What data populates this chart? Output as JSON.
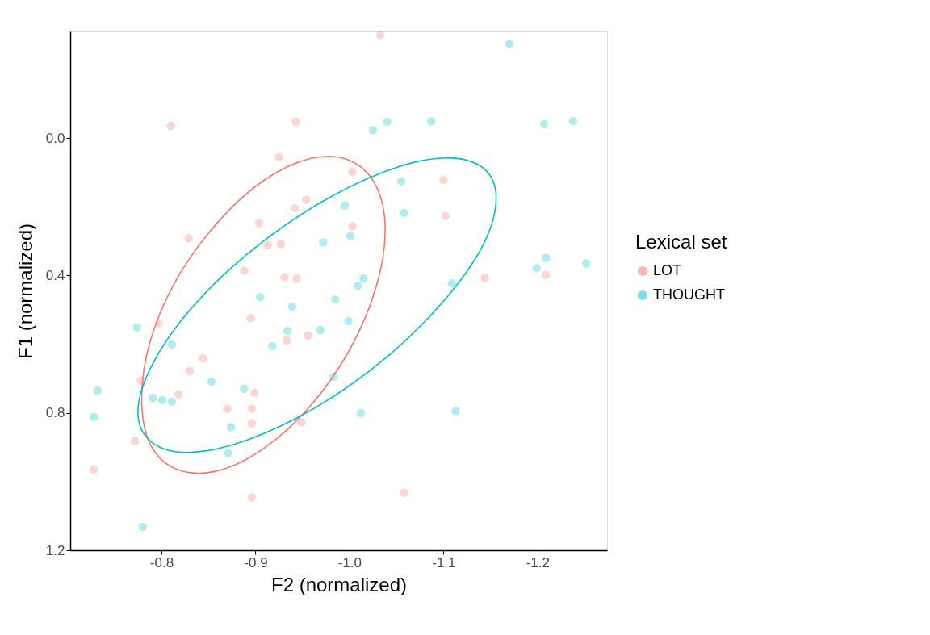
{
  "chart_data": {
    "type": "scatter",
    "xlabel": "F2 (normalized)",
    "ylabel": "F1 (normalized)",
    "legend_title": "Lexical set",
    "xlim": [
      -0.703,
      -1.274
    ],
    "ylim": [
      1.2,
      -0.31
    ],
    "xticks": [
      -0.8,
      -0.9,
      {
        "value": -1.0,
        "label": "-1.0"
      },
      -1.1,
      -1.2
    ],
    "yticks": [
      {
        "value": 0,
        "label": "0.0"
      },
      0.4,
      0.8,
      1.2
    ],
    "grid": false,
    "legend": "right",
    "marker": "circle",
    "series": [
      {
        "name": "LOT",
        "color": "#f8766d",
        "x": [
          -1.033,
          -0.81,
          -0.943,
          -0.925,
          -1.003,
          -1.1,
          -1.102,
          -0.954,
          -0.942,
          -0.904,
          -1.003,
          -0.829,
          -0.913,
          -0.927,
          -0.888,
          -0.931,
          -0.944,
          -1.144,
          -1.209,
          -0.895,
          -0.797,
          -0.933,
          -0.956,
          -0.844,
          -0.83,
          -0.778,
          -0.818,
          -0.899,
          -0.87,
          -0.896,
          -0.896,
          -0.949,
          -0.772,
          -0.728,
          -0.896,
          -1.058
        ],
        "values": [
          -0.3,
          -0.035,
          -0.047,
          0.056,
          0.098,
          0.122,
          0.227,
          0.18,
          0.204,
          0.248,
          0.257,
          0.292,
          0.311,
          0.309,
          0.386,
          0.405,
          0.409,
          0.407,
          0.398,
          0.524,
          0.54,
          0.589,
          0.575,
          0.641,
          0.678,
          0.706,
          0.746,
          0.742,
          0.788,
          0.788,
          0.83,
          0.828,
          0.882,
          0.964,
          1.046,
          1.032
        ]
      },
      {
        "name": "THOUGHT",
        "color": "#00bfc4",
        "x": [
          -1.17,
          -1.025,
          -1.04,
          -1.087,
          -1.207,
          -1.238,
          -1.055,
          -0.995,
          -1.058,
          -1.001,
          -0.972,
          -1.209,
          -1.199,
          -1.252,
          -1.009,
          -1.015,
          -1.109,
          -0.905,
          -0.939,
          -0.985,
          -0.999,
          -0.774,
          -0.934,
          -0.969,
          -0.811,
          -0.918,
          -0.983,
          -0.853,
          -0.732,
          -0.791,
          -0.801,
          -0.811,
          -0.888,
          -0.728,
          -0.874,
          -0.871,
          -1.012,
          -1.113,
          -0.78
        ],
        "values": [
          -0.274,
          -0.023,
          -0.047,
          -0.049,
          -0.04,
          -0.049,
          0.126,
          0.196,
          0.218,
          0.285,
          0.304,
          0.349,
          0.379,
          0.365,
          0.43,
          0.409,
          0.423,
          0.463,
          0.491,
          0.47,
          0.533,
          0.552,
          0.561,
          0.559,
          0.601,
          0.606,
          0.695,
          0.709,
          0.735,
          0.756,
          0.763,
          0.767,
          0.73,
          0.812,
          0.842,
          0.917,
          0.8,
          0.795,
          1.132
        ]
      }
    ]
  }
}
